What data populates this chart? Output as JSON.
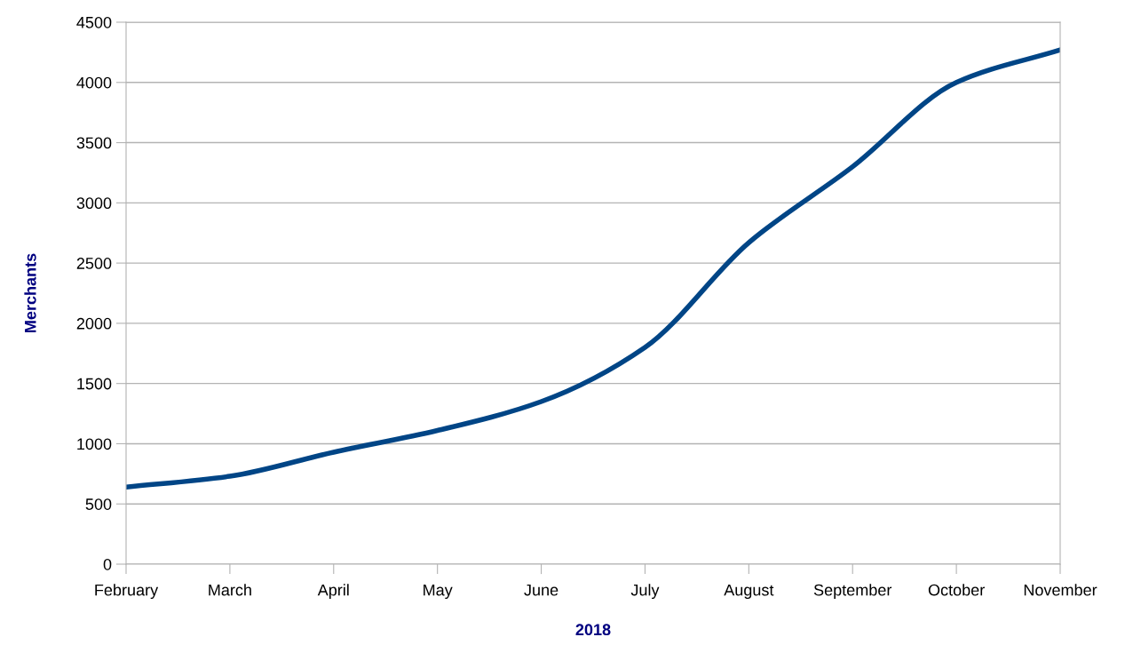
{
  "chart_data": {
    "type": "line",
    "xlabel": "2018",
    "ylabel": "Merchants",
    "categories": [
      "February",
      "March",
      "April",
      "May",
      "June",
      "July",
      "August",
      "September",
      "October",
      "November"
    ],
    "series": [
      {
        "color": "#004586",
        "values": [
          640,
          730,
          930,
          1110,
          1350,
          1800,
          2670,
          3300,
          4000,
          4270
        ]
      }
    ],
    "ylim": [
      0,
      4500
    ],
    "yticks": [
      0,
      500,
      1000,
      1500,
      2000,
      2500,
      3000,
      3500,
      4000,
      4500
    ],
    "grid": "y",
    "marker": "none",
    "line_style": "solid"
  }
}
